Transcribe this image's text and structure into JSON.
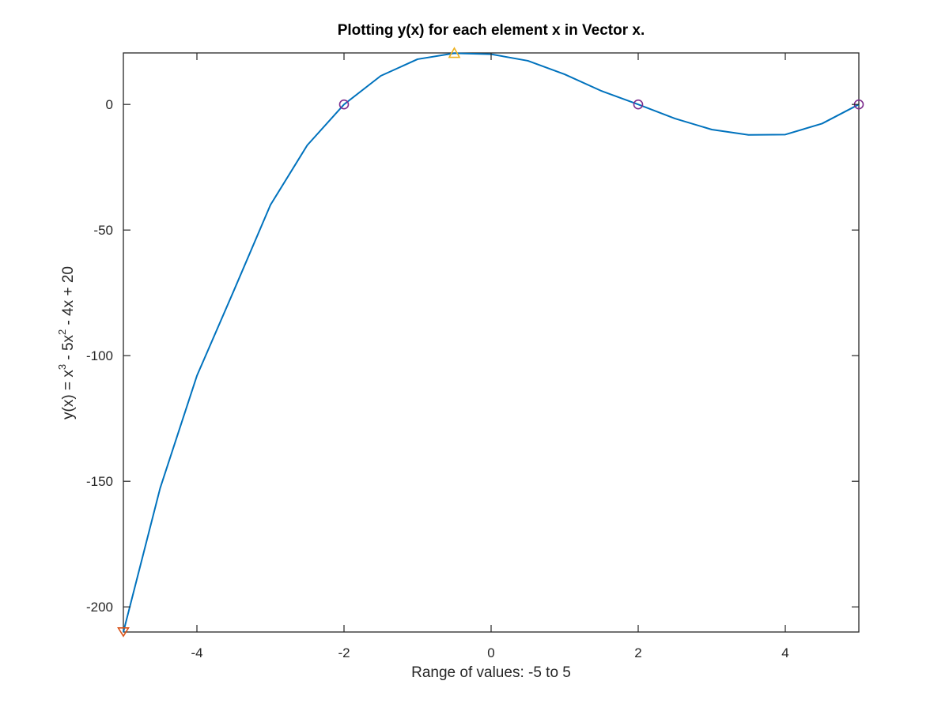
{
  "chart_data": {
    "type": "line",
    "title": "Plotting y(x) for each element x in Vector x.",
    "xlabel": "Range of values: -5 to 5",
    "ylabel": {
      "parts": [
        "y(x) = x",
        "3",
        " - 5x",
        "2",
        " - 4x + 20"
      ]
    },
    "xlim": [
      -5,
      5
    ],
    "ylim": [
      -210,
      20.5
    ],
    "xticks": [
      -4,
      -2,
      0,
      2,
      4
    ],
    "xtick_labels": [
      "-4",
      "-2",
      "0",
      "2",
      "4"
    ],
    "yticks": [
      -200,
      -150,
      -100,
      -50,
      0
    ],
    "ytick_labels": [
      "-200",
      "-150",
      "-100",
      "-50",
      "0"
    ],
    "grid": false,
    "colors": {
      "line": "#0072BD",
      "root_marker": "#7E2F8E",
      "max_marker": "#EDB120",
      "min_marker": "#D95319",
      "axes": "#262626"
    },
    "series": [
      {
        "x": [
          -5,
          -4.5,
          -4,
          -3.5,
          -3,
          -2.5,
          -2,
          -1.5,
          -1,
          -0.5,
          0,
          0.5,
          1,
          1.5,
          2,
          2.5,
          3,
          3.5,
          4,
          4.5,
          5
        ],
        "y": [
          -210,
          -152.75,
          -108,
          -74.25,
          -40,
          -16.25,
          0,
          11.375,
          18,
          20.375,
          20,
          17.375,
          12,
          5.375,
          0,
          -5.625,
          -10,
          -12.125,
          -12,
          -7.625,
          0
        ]
      }
    ],
    "markers": [
      {
        "role": "root",
        "shape": "circle",
        "points": [
          [
            -2,
            0
          ],
          [
            2,
            0
          ],
          [
            5,
            0
          ]
        ]
      },
      {
        "role": "maximum",
        "shape": "triangle-up",
        "points": [
          [
            -0.5,
            20.375
          ]
        ]
      },
      {
        "role": "minimum",
        "shape": "triangle-down",
        "points": [
          [
            -5,
            -210
          ]
        ]
      }
    ]
  }
}
